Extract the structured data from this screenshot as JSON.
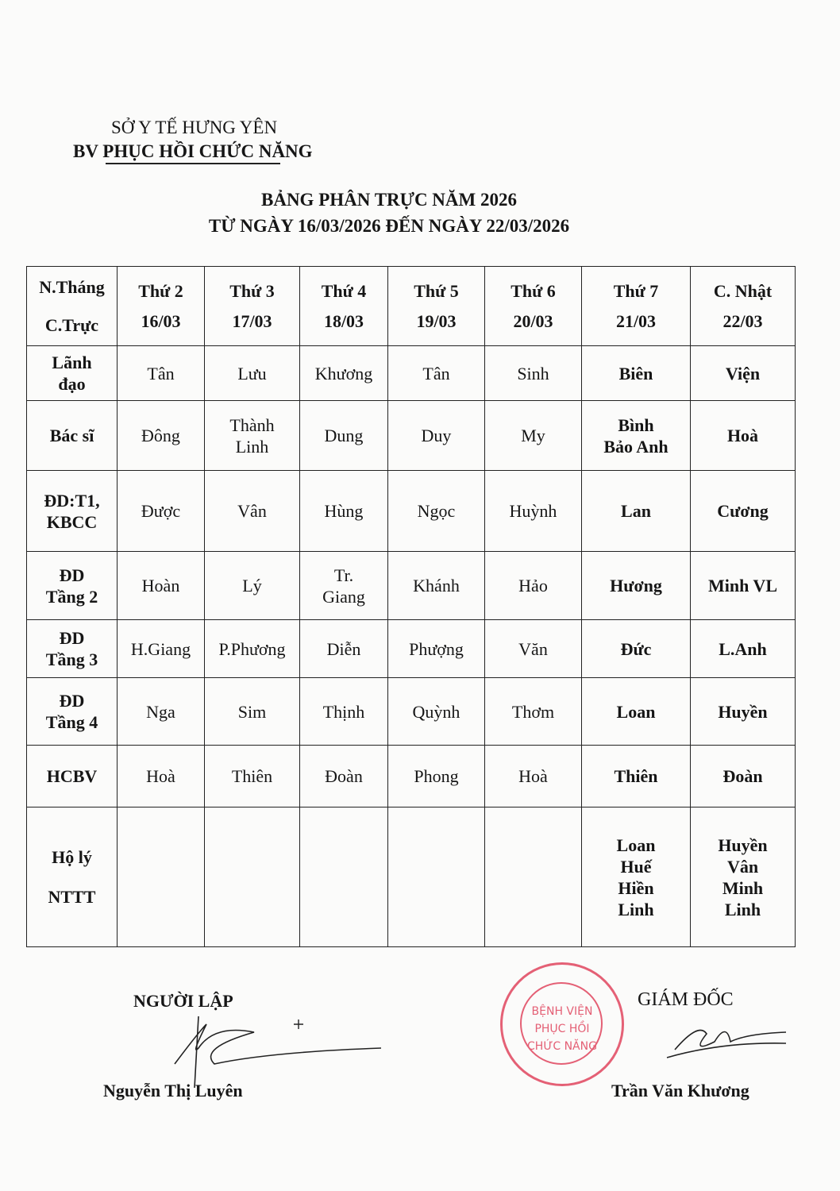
{
  "header": {
    "department": "SỞ Y TẾ HƯNG YÊN",
    "hospital": "BV PHỤC HỒI CHỨC NĂNG",
    "title": "BẢNG PHÂN TRỰC NĂM 2026",
    "subtitle": "TỪ NGÀY 16/03/2026 ĐẾN NGÀY 22/03/2026"
  },
  "table": {
    "corner": [
      "N.Tháng",
      "C.Trực"
    ],
    "columns": [
      {
        "day": "Thứ 2",
        "date": "16/03"
      },
      {
        "day": "Thứ 3",
        "date": "17/03"
      },
      {
        "day": "Thứ 4",
        "date": "18/03"
      },
      {
        "day": "Thứ 5",
        "date": "19/03"
      },
      {
        "day": "Thứ 6",
        "date": "20/03"
      },
      {
        "day": "Thứ 7",
        "date": "21/03"
      },
      {
        "day": "C. Nhật",
        "date": "22/03"
      }
    ],
    "rows": [
      {
        "label": [
          "Lãnh",
          "đạo"
        ],
        "cells": [
          [
            "Tân"
          ],
          [
            "Lưu"
          ],
          [
            "Khương"
          ],
          [
            "Tân"
          ],
          [
            "Sinh"
          ],
          [
            "Biên"
          ],
          [
            "Viện"
          ]
        ]
      },
      {
        "label": [
          "Bác sĩ"
        ],
        "cells": [
          [
            "Đông"
          ],
          [
            "Thành",
            "Linh"
          ],
          [
            "Dung"
          ],
          [
            "Duy"
          ],
          [
            "My"
          ],
          [
            "Bình",
            "Bảo Anh"
          ],
          [
            "Hoà"
          ]
        ]
      },
      {
        "label": [
          "ĐD:T1,",
          "KBCC"
        ],
        "cells": [
          [
            "Được"
          ],
          [
            "Vân"
          ],
          [
            "Hùng"
          ],
          [
            "Ngọc"
          ],
          [
            "Huỳnh"
          ],
          [
            "Lan"
          ],
          [
            "Cương"
          ]
        ]
      },
      {
        "label": [
          "ĐD",
          "Tầng 2"
        ],
        "cells": [
          [
            "Hoàn"
          ],
          [
            "Lý"
          ],
          [
            "Tr.",
            "Giang"
          ],
          [
            "Khánh"
          ],
          [
            "Hảo"
          ],
          [
            "Hương"
          ],
          [
            "Minh VL"
          ]
        ]
      },
      {
        "label": [
          "ĐD",
          "Tầng 3"
        ],
        "cells": [
          [
            "H.Giang"
          ],
          [
            "P.Phương"
          ],
          [
            "Diễn"
          ],
          [
            "Phượng"
          ],
          [
            "Văn"
          ],
          [
            "Đức"
          ],
          [
            "L.Anh"
          ]
        ]
      },
      {
        "label": [
          "ĐD",
          "Tầng 4"
        ],
        "cells": [
          [
            "Nga"
          ],
          [
            "Sim"
          ],
          [
            "Thịnh"
          ],
          [
            "Quỳnh"
          ],
          [
            "Thơm"
          ],
          [
            "Loan"
          ],
          [
            "Huyền"
          ]
        ]
      },
      {
        "label": [
          "HCBV"
        ],
        "cells": [
          [
            "Hoà"
          ],
          [
            "Thiên"
          ],
          [
            "Đoàn"
          ],
          [
            "Phong"
          ],
          [
            "Hoà"
          ],
          [
            "Thiên"
          ],
          [
            "Đoàn"
          ]
        ]
      },
      {
        "label": [
          "Hộ lý",
          "NTTT"
        ],
        "cells": [
          [],
          [],
          [],
          [],
          [],
          [
            "Loan",
            "Huế",
            "Hiền",
            "Linh"
          ],
          [
            "Huyền",
            "Vân",
            "Minh",
            "Linh"
          ]
        ]
      }
    ]
  },
  "signatures": {
    "left_title": "NGƯỜI LẬP",
    "left_name": "Nguyễn Thị Luyên",
    "right_title": "GIÁM ĐỐC",
    "right_name": "Trần Văn Khương",
    "stamp_text": [
      "BỆNH VIỆN",
      "PHỤC HỒI",
      "CHỨC NĂNG"
    ],
    "stamp_color": "#e0455e"
  }
}
